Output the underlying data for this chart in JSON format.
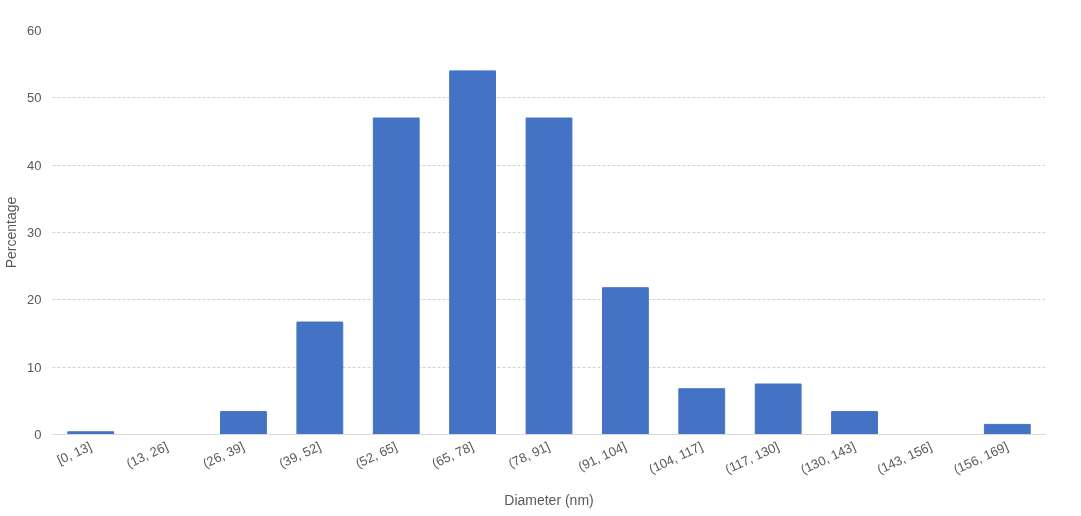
{
  "chart_data": {
    "type": "bar",
    "xlabel": "Diameter (nm)",
    "ylabel": "Percentage",
    "categories": [
      "[0, 13]",
      "(13, 26]",
      "(26, 39]",
      "(39, 52]",
      "(52, 65]",
      "(65, 78]",
      "(78, 91]",
      "(91, 104]",
      "(104, 117]",
      "(117, 130]",
      "(130, 143]",
      "(143, 156]",
      "(156, 169]"
    ],
    "values": [
      0.4,
      0,
      3.4,
      16.7,
      47,
      54,
      47,
      21.8,
      6.8,
      7.5,
      3.4,
      0,
      1.5
    ],
    "color": "#4472c4",
    "ylim": [
      0,
      60
    ],
    "yticks": [
      0,
      10,
      20,
      30,
      40,
      50,
      60
    ],
    "grid": "y"
  }
}
